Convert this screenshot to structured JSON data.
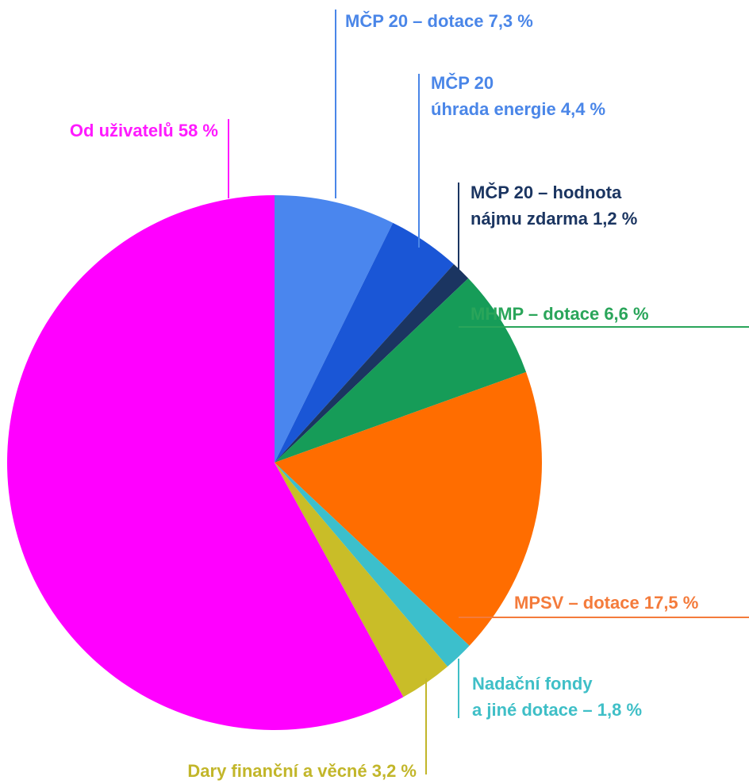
{
  "chart_data": {
    "type": "pie",
    "categories": [
      "MČP 20 – dotace",
      "MČP 20\núhrada energie",
      "MČP 20 – hodnota\nnájmu zdarma",
      "MHMP – dotace",
      "MPSV – dotace",
      "Nadační fondy\na jiné dotace –",
      "Dary finanční a věcné",
      "Od uživatelů"
    ],
    "values": [
      7.3,
      4.4,
      1.2,
      6.6,
      17.5,
      1.8,
      3.2,
      58
    ],
    "value_labels": [
      "7,3 %",
      "4,4 %",
      "1,2 %",
      "6,6 %",
      "17,5 %",
      "1,8 %",
      "3,2 %",
      "58 %"
    ],
    "colors": [
      "#4a86ee",
      "#1a56d6",
      "#1b3561",
      "#169c58",
      "#ff6d00",
      "#3cbfcc",
      "#c9bd28",
      "#ff00ff"
    ],
    "label_colors": [
      "#4a86e8",
      "#4a86e8",
      "#1b3561",
      "#2aa55a",
      "#f47b3b",
      "#3fbfc7",
      "#c2b62a",
      "#ff1aff"
    ]
  }
}
